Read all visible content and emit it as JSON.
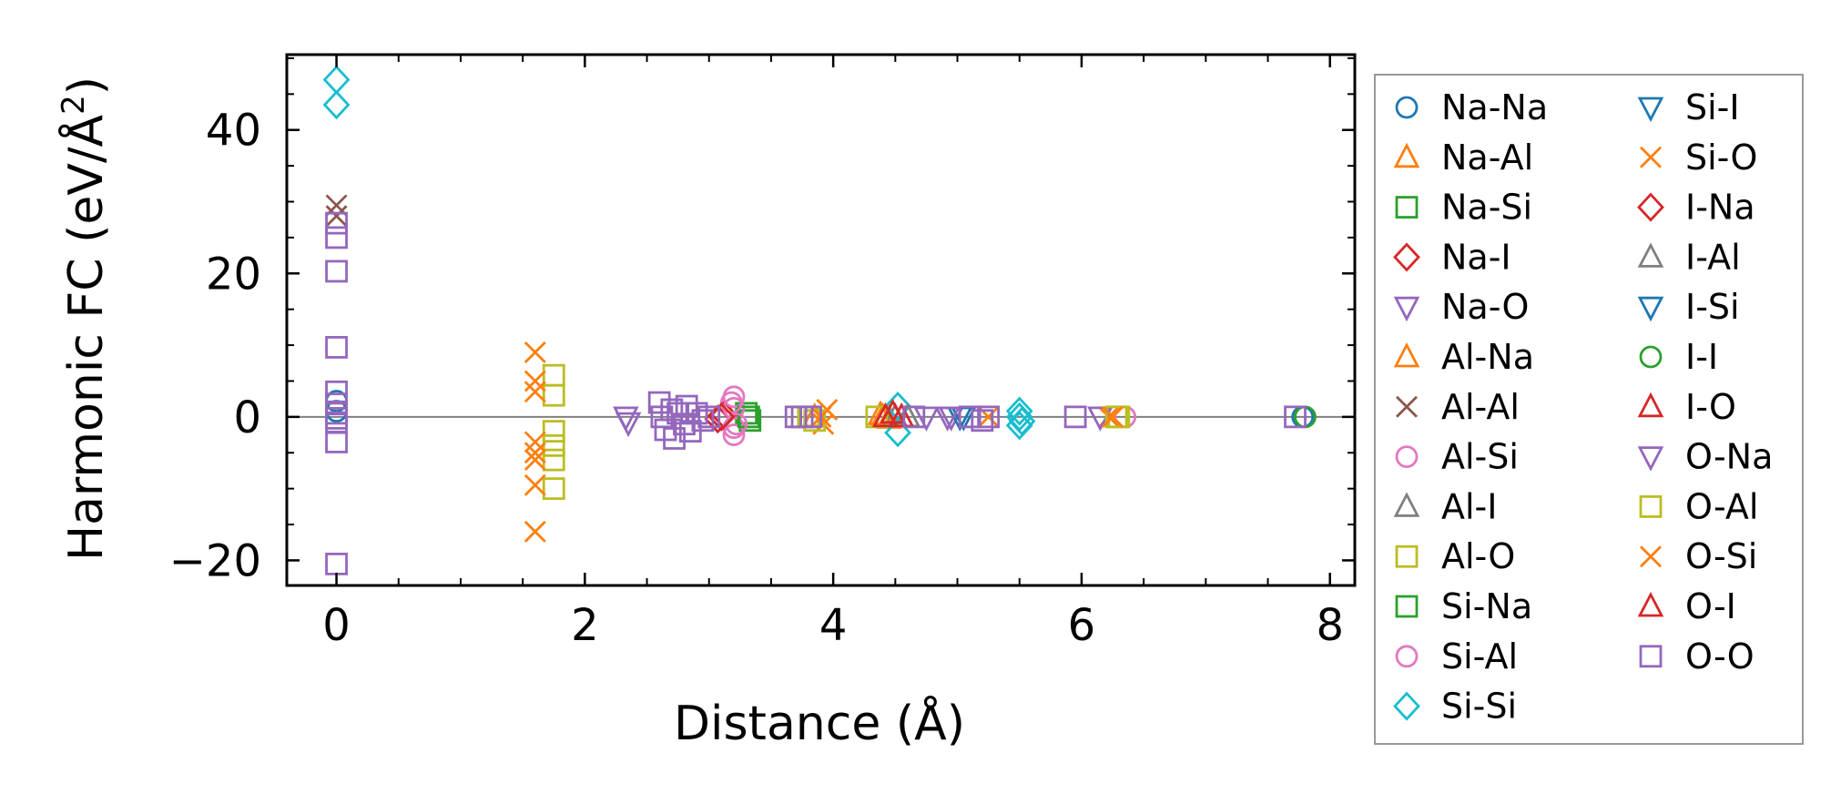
{
  "chart_data": {
    "type": "scatter",
    "title": "",
    "xlabel": "Distance (Å)",
    "ylabel_main": "Harmonic FC (eV/Å",
    "ylabel_sup": "2",
    "ylabel_close": ")",
    "xlim": [
      -0.4,
      8.2
    ],
    "ylim": [
      -23.5,
      50.5
    ],
    "xticks": [
      0,
      2,
      4,
      6,
      8
    ],
    "yticks": [
      -20,
      0,
      20,
      40
    ],
    "xtick_labels": [
      "0",
      "2",
      "4",
      "6",
      "8"
    ],
    "ytick_labels": [
      "−20",
      "0",
      "20",
      "40"
    ],
    "zero_line": 0,
    "legend_position": "outside-right",
    "series": [
      {
        "name": "Na-Na",
        "marker": "o",
        "color": "#1f77b4",
        "x": [
          0,
          0,
          7.78
        ],
        "y": [
          2.2,
          0.8,
          0
        ]
      },
      {
        "name": "Na-Al",
        "marker": "^",
        "color": "#ff7f0e",
        "x": [
          3.85,
          4.4
        ],
        "y": [
          0,
          0
        ]
      },
      {
        "name": "Na-Si",
        "marker": "s",
        "color": "#2ca02c",
        "x": [
          3.3,
          3.33
        ],
        "y": [
          0.5,
          -0.5
        ]
      },
      {
        "name": "Na-I",
        "marker": "D",
        "color": "#d62728",
        "x": [
          3.07,
          3.12
        ],
        "y": [
          -0.3,
          0.3
        ]
      },
      {
        "name": "Na-O",
        "marker": "v",
        "color": "#9467bd",
        "x": [
          2.33,
          2.35,
          4.95
        ],
        "y": [
          0,
          -0.8,
          0
        ]
      },
      {
        "name": "Al-Na",
        "marker": "^",
        "color": "#ff7f0e",
        "x": [
          4.38,
          4.45
        ],
        "y": [
          0.3,
          -0.2
        ]
      },
      {
        "name": "Al-Al",
        "marker": "x",
        "color": "#8c564b",
        "x": [
          0,
          0
        ],
        "y": [
          29.5,
          28
        ]
      },
      {
        "name": "Al-Si",
        "marker": "o",
        "color": "#e377c2",
        "x": [
          3.2,
          3.2,
          3.2,
          3.2,
          6.35
        ],
        "y": [
          2.8,
          1.2,
          -1.5,
          -2.5,
          0
        ]
      },
      {
        "name": "Al-I",
        "marker": "^",
        "color": "#7f7f7f",
        "x": [
          4.5
        ],
        "y": [
          0
        ]
      },
      {
        "name": "Al-O",
        "marker": "s",
        "color": "#bcbd22",
        "x": [
          1.75,
          1.75,
          1.75,
          1.75,
          1.75,
          1.75,
          3.8,
          4.35,
          6.3
        ],
        "y": [
          5.8,
          3,
          -2,
          -4,
          -6,
          -10,
          0,
          0,
          0
        ]
      },
      {
        "name": "Si-Na",
        "marker": "s",
        "color": "#2ca02c",
        "x": [
          3.32
        ],
        "y": [
          0
        ]
      },
      {
        "name": "Si-Al",
        "marker": "o",
        "color": "#e377c2",
        "x": [
          3.18,
          3.22
        ],
        "y": [
          2,
          -1
        ]
      },
      {
        "name": "Si-Si",
        "marker": "D",
        "color": "#17becf",
        "x": [
          0,
          0,
          4.52,
          4.52,
          5.5,
          5.5,
          5.52,
          5.5
        ],
        "y": [
          47,
          43.5,
          1.5,
          -2.2,
          0.8,
          0,
          -0.6,
          -1.2
        ]
      },
      {
        "name": "Si-I",
        "marker": "v",
        "color": "#1f77b4",
        "x": [
          5.02
        ],
        "y": [
          0
        ]
      },
      {
        "name": "Si-O",
        "marker": "x",
        "color": "#ff7f0e",
        "x": [
          1.6,
          1.6,
          1.6,
          1.6,
          1.6,
          1.6,
          1.6,
          1.6,
          3.95,
          3.92,
          6.22
        ],
        "y": [
          9,
          5,
          3.5,
          -3.5,
          -5,
          -6,
          -9.5,
          -16,
          1,
          -1,
          0
        ]
      },
      {
        "name": "I-Na",
        "marker": "D",
        "color": "#d62728",
        "x": [
          3.1
        ],
        "y": [
          0
        ]
      },
      {
        "name": "I-Al",
        "marker": "^",
        "color": "#7f7f7f",
        "x": [
          4.6
        ],
        "y": [
          0
        ]
      },
      {
        "name": "I-Si",
        "marker": "v",
        "color": "#1f77b4",
        "x": [
          5.05
        ],
        "y": [
          0
        ]
      },
      {
        "name": "I-I",
        "marker": "o",
        "color": "#2ca02c",
        "x": [
          7.8
        ],
        "y": [
          0
        ]
      },
      {
        "name": "I-O",
        "marker": "^",
        "color": "#d62728",
        "x": [
          4.42,
          4.48
        ],
        "y": [
          0,
          0.5
        ]
      },
      {
        "name": "O-Na",
        "marker": "v",
        "color": "#9467bd",
        "x": [
          4.75,
          4.92,
          6.15
        ],
        "y": [
          0,
          0,
          0
        ]
      },
      {
        "name": "O-Al",
        "marker": "s",
        "color": "#bcbd22",
        "x": [
          3.85,
          6.28
        ],
        "y": [
          -0.5,
          0
        ]
      },
      {
        "name": "O-Si",
        "marker": "x",
        "color": "#ff7f0e",
        "x": [
          3.9,
          5.25,
          6.25
        ],
        "y": [
          0,
          0,
          0
        ]
      },
      {
        "name": "O-I",
        "marker": "^",
        "color": "#d62728",
        "x": [
          4.55
        ],
        "y": [
          0
        ]
      },
      {
        "name": "O-O",
        "marker": "s",
        "color": "#9467bd",
        "x": [
          0,
          0,
          0,
          0,
          0,
          0,
          0,
          0,
          0,
          0,
          0,
          2.6,
          2.62,
          2.65,
          2.7,
          2.72,
          2.75,
          2.8,
          2.82,
          2.85,
          2.9,
          2.95,
          3.0,
          3.7,
          3.75,
          3.82,
          4.65,
          5.1,
          5.2,
          5.25,
          5.95,
          7.72
        ],
        "y": [
          27,
          25,
          20.3,
          9.7,
          3.5,
          1.8,
          0.5,
          -0.2,
          -0.8,
          -3.5,
          -20.5,
          2,
          0,
          -1.8,
          1,
          -3,
          0.5,
          -1,
          1.5,
          -2,
          0.5,
          -0.5,
          0,
          0,
          0,
          0,
          0,
          0,
          -0.5,
          0,
          0,
          0
        ]
      }
    ]
  }
}
